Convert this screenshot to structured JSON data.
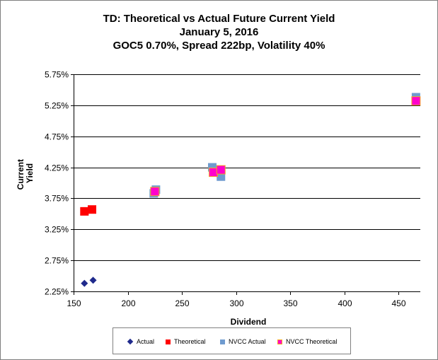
{
  "chart_data": {
    "type": "scatter",
    "title_lines": [
      "TD: Theoretical vs Actual Future Current Yield",
      "January 5, 2016",
      "GOC5 0.70%, Spread 222bp, Volatility 40%"
    ],
    "xlabel": "Dividend",
    "ylabel": "Current Yield",
    "xlim": [
      150,
      470
    ],
    "ylim": [
      2.25,
      5.75
    ],
    "x_ticks": [
      150,
      200,
      250,
      300,
      350,
      400,
      450
    ],
    "x_tick_labels": [
      "150",
      "200",
      "250",
      "300",
      "350",
      "400",
      "450"
    ],
    "y_ticks": [
      2.25,
      2.75,
      3.25,
      3.75,
      4.25,
      4.75,
      5.25,
      5.75
    ],
    "y_tick_labels": [
      "2.25%",
      "2.75%",
      "3.25%",
      "3.75%",
      "4.25%",
      "4.75%",
      "5.25%",
      "5.75%"
    ],
    "grid": "horizontal",
    "legend_position": "bottom",
    "series": [
      {
        "name": "Actual",
        "marker": "diamond",
        "color": "#1f2a8c",
        "points": [
          {
            "x": 160,
            "y": 2.38
          },
          {
            "x": 168,
            "y": 2.43
          }
        ]
      },
      {
        "name": "Theoretical",
        "marker": "square",
        "color": "#ff0000",
        "points": [
          {
            "x": 160,
            "y": 3.54
          },
          {
            "x": 167,
            "y": 3.57
          }
        ]
      },
      {
        "name": "NVCC Actual",
        "marker": "square",
        "color": "#6f9bcf",
        "points": [
          {
            "x": 224,
            "y": 3.83
          },
          {
            "x": 226,
            "y": 3.89
          },
          {
            "x": 278,
            "y": 4.25
          },
          {
            "x": 286,
            "y": 4.1
          },
          {
            "x": 466,
            "y": 5.38
          }
        ]
      },
      {
        "name": "NVCC Theoretical",
        "marker": "square",
        "color": "#ff00cc",
        "border_color": "#f5a623",
        "points": [
          {
            "x": 225,
            "y": 3.86
          },
          {
            "x": 279,
            "y": 4.17
          },
          {
            "x": 286,
            "y": 4.21
          },
          {
            "x": 466,
            "y": 5.32
          }
        ]
      }
    ]
  }
}
